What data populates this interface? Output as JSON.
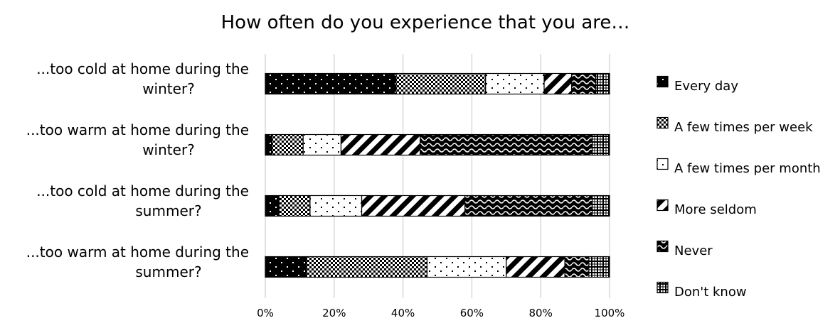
{
  "chart_data": {
    "type": "bar",
    "stacked": "percent",
    "orientation": "horizontal",
    "title": "How often do you experience that you are…",
    "categories": [
      [
        "...too cold at home during the",
        "winter?"
      ],
      [
        "...too warm at home during the",
        "winter?"
      ],
      [
        "...too cold at home during the",
        "summer?"
      ],
      [
        "...too warm at home during the",
        "summer?"
      ]
    ],
    "series": [
      {
        "name": "Every day",
        "pattern": "dots-on-black",
        "values": [
          38,
          2,
          4,
          12
        ]
      },
      {
        "name": "A few times per week",
        "pattern": "checker",
        "values": [
          26,
          9,
          9,
          35
        ]
      },
      {
        "name": "A few times per month",
        "pattern": "sparse-dots",
        "values": [
          17,
          11,
          15,
          23
        ]
      },
      {
        "name": "More seldom",
        "pattern": "diagonal-stripes",
        "values": [
          8,
          23,
          30,
          17
        ]
      },
      {
        "name": "Never",
        "pattern": "waves",
        "values": [
          7,
          50,
          37,
          7
        ]
      },
      {
        "name": "Don't know",
        "pattern": "grid",
        "values": [
          4,
          5,
          5,
          6
        ]
      }
    ],
    "xlim": [
      0,
      100
    ],
    "x_ticks": [
      "0%",
      "20%",
      "40%",
      "60%",
      "80%",
      "100%"
    ],
    "grid": true,
    "legend_position": "right",
    "colors": {
      "ink": "#000000",
      "paper": "#ffffff",
      "grid": "#d9d9d9"
    }
  }
}
